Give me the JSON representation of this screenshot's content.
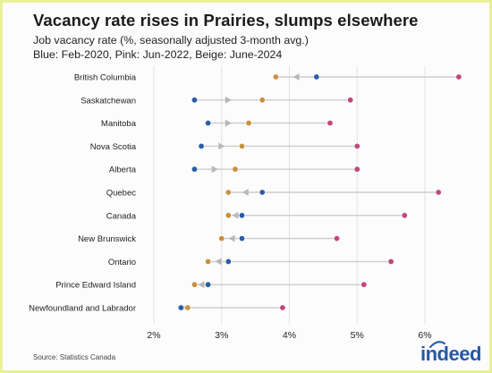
{
  "header": {
    "title": "Vacancy rate rises in Prairies, slumps elsewhere",
    "subtitle_line1": "Job vacancy rate (%, seasonally adjusted 3-month avg.)",
    "subtitle_line2": "Blue: Feb-2020, Pink: Jun-2022, Beige: June-2024"
  },
  "footer": {
    "source": "Source: Statistics Canada",
    "logo_text": "indeed"
  },
  "colors": {
    "blue": "#2a5ca8",
    "pink": "#c2467f",
    "beige": "#c8913e",
    "connector": "#cccccc",
    "arrow": "#b8b8b8",
    "grid": "#e2e2e2"
  },
  "chart_data": {
    "type": "dot-range",
    "title": "Vacancy rate rises in Prairies, slumps elsewhere",
    "subtitle": "Job vacancy rate (%, seasonally adjusted 3-month avg.)",
    "xlim": [
      2,
      6
    ],
    "x_ticks": [
      2,
      3,
      4,
      5,
      6
    ],
    "x_tick_labels": [
      "2%",
      "3%",
      "4%",
      "5%",
      "6%"
    ],
    "grid": true,
    "categories": [
      "British Columbia",
      "Saskatchewan",
      "Manitoba",
      "Nova Scotia",
      "Alberta",
      "Quebec",
      "Canada",
      "New Brunswick",
      "Ontario",
      "Prince Edward Island",
      "Newfoundland and Labrador"
    ],
    "series": [
      {
        "name": "Feb-2020",
        "color": "#2a5ca8",
        "values": [
          4.4,
          2.6,
          2.8,
          2.7,
          2.6,
          3.6,
          3.3,
          3.3,
          3.1,
          2.8,
          2.4
        ]
      },
      {
        "name": "Jun-2022",
        "color": "#c2467f",
        "values": [
          6.5,
          4.9,
          4.6,
          5.0,
          5.0,
          6.2,
          5.7,
          4.7,
          5.5,
          5.1,
          3.9
        ]
      },
      {
        "name": "June-2024",
        "color": "#c8913e",
        "values": [
          3.8,
          3.6,
          3.4,
          3.3,
          3.2,
          3.1,
          3.1,
          3.0,
          2.8,
          2.6,
          2.5
        ]
      }
    ]
  }
}
